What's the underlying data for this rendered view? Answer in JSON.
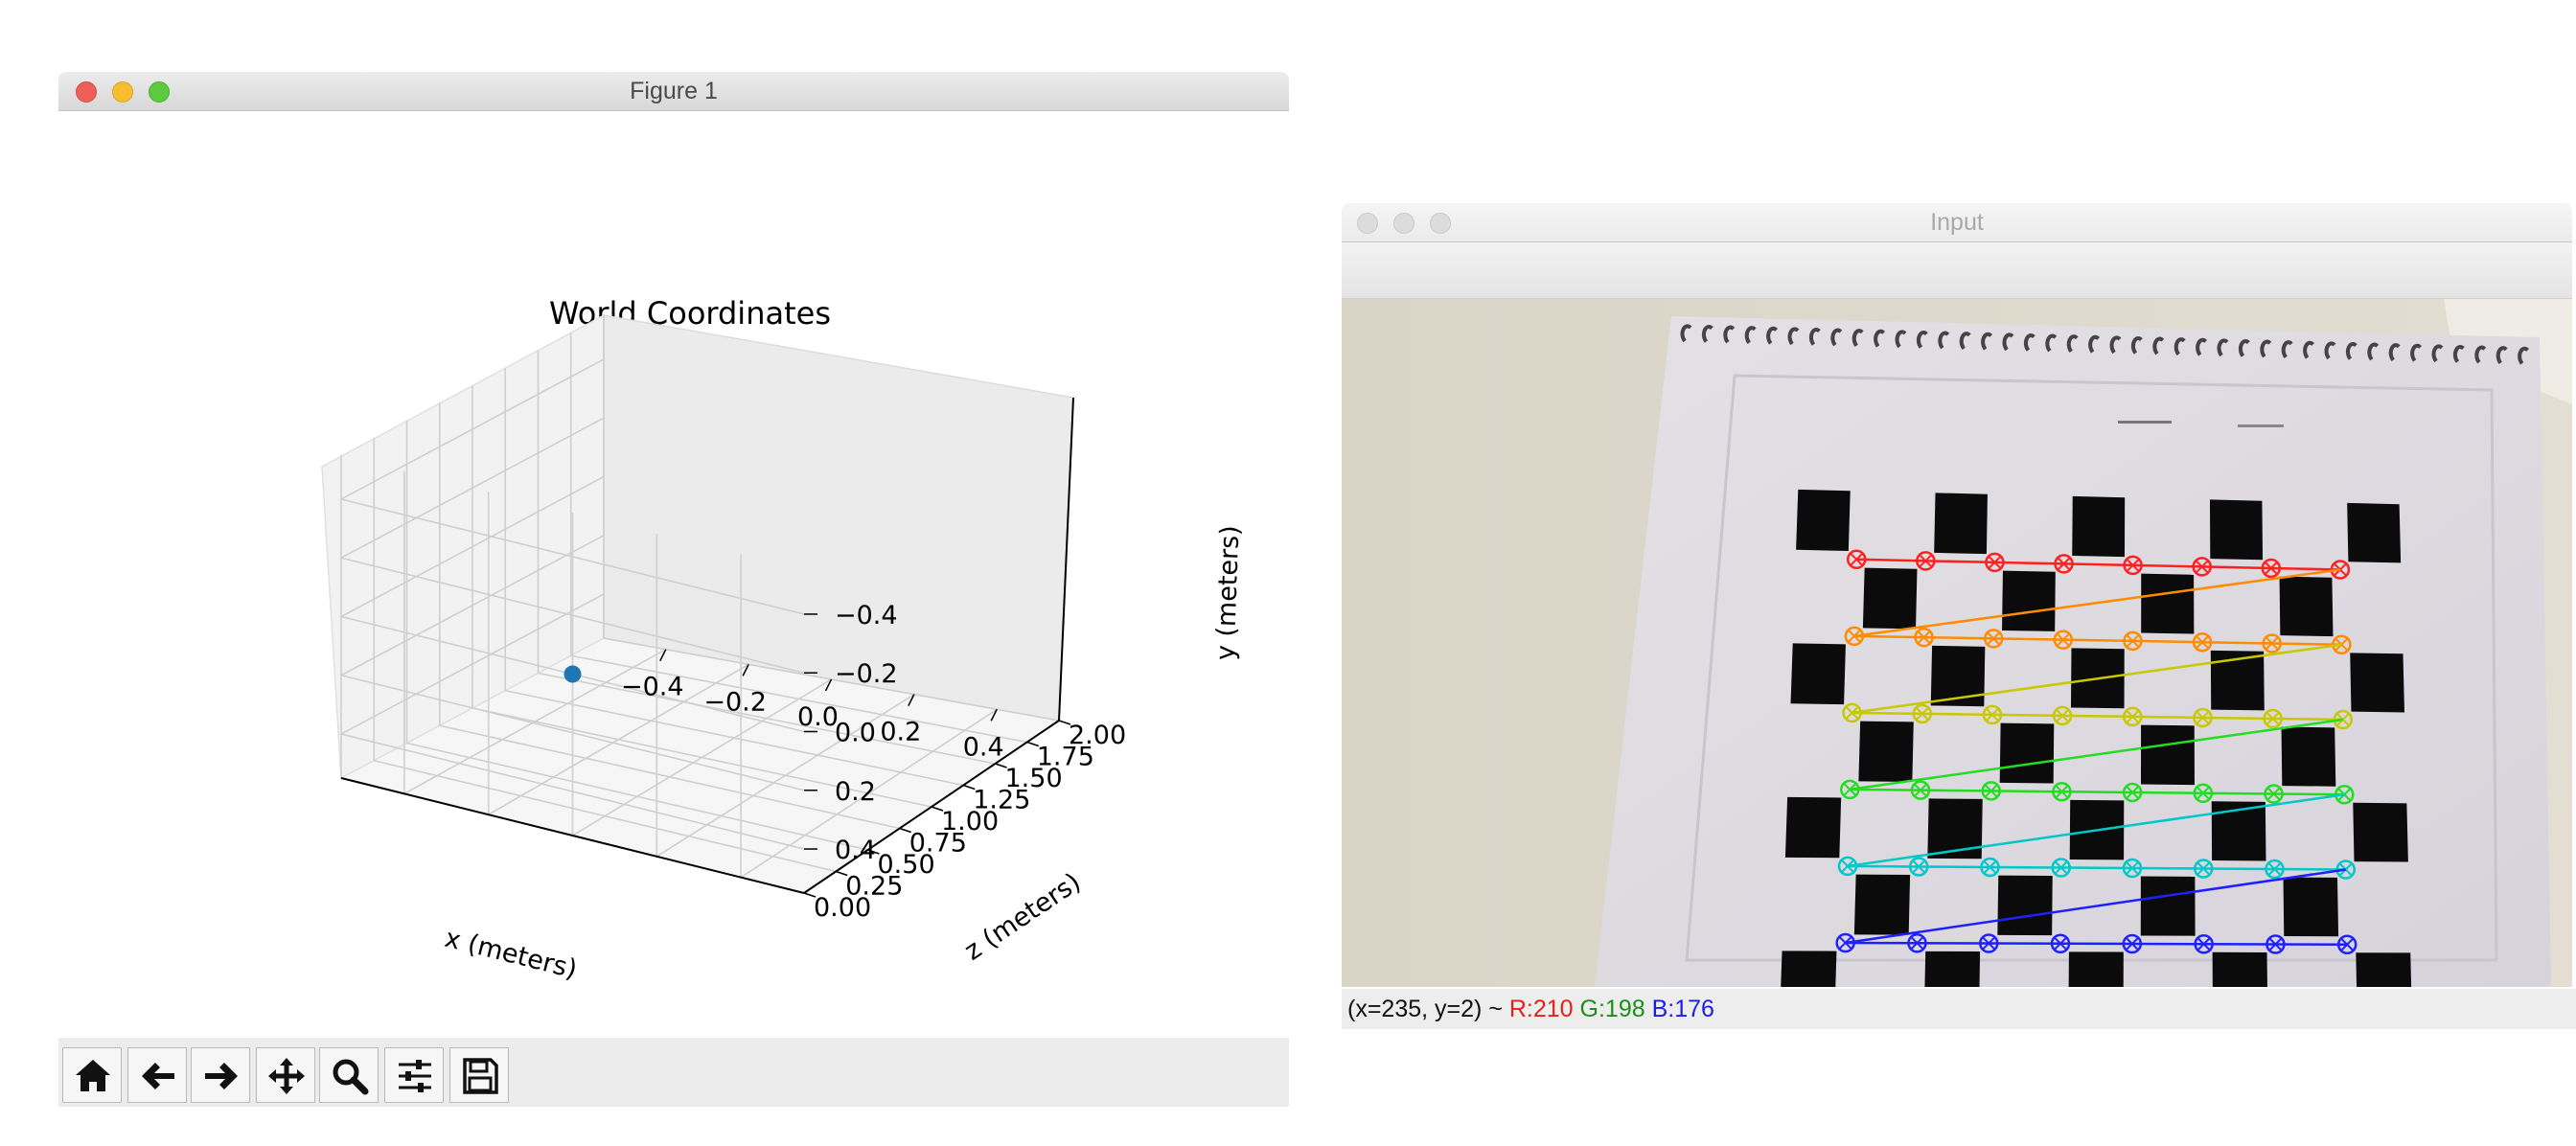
{
  "figure_window": {
    "title": "Figure 1",
    "toolbar": {
      "buttons": [
        "home-icon",
        "back-icon",
        "forward-icon",
        "pan-icon",
        "zoom-icon",
        "configure-subplots-icon",
        "save-icon"
      ]
    }
  },
  "chart_data": {
    "type": "scatter",
    "projection": "3d",
    "title": "World Coordinates",
    "xlabel": "x (meters)",
    "ylabel": "y (meters)",
    "zlabel": "z (meters)",
    "x_ticks": [
      "−0.4",
      "−0.2",
      "0.0",
      "0.2",
      "0.4"
    ],
    "y_ticks": [
      "−0.4",
      "−0.2",
      "0.0",
      "0.2",
      "0.4"
    ],
    "z_ticks": [
      "0.00",
      "0.25",
      "0.50",
      "0.75",
      "1.00",
      "1.25",
      "1.50",
      "1.75",
      "2.00"
    ],
    "xlim": [
      -0.55,
      0.55
    ],
    "ylim": [
      -0.55,
      0.55
    ],
    "zlim": [
      0,
      2.0
    ],
    "y_inverted": true,
    "grid": true,
    "points": [
      {
        "x": 0.0,
        "y": 0.0,
        "z": 0.0
      }
    ],
    "point_color": "#1f77b4"
  },
  "input_window": {
    "title": "Input",
    "status": {
      "coords": "(x=235, y=2) ~",
      "r": "R:210",
      "g": "G:198",
      "b": "B:176"
    },
    "row_colors": [
      "#ff2020",
      "#ff8c00",
      "#c8c800",
      "#22dd22",
      "#00c8c8",
      "#2020ff"
    ]
  }
}
